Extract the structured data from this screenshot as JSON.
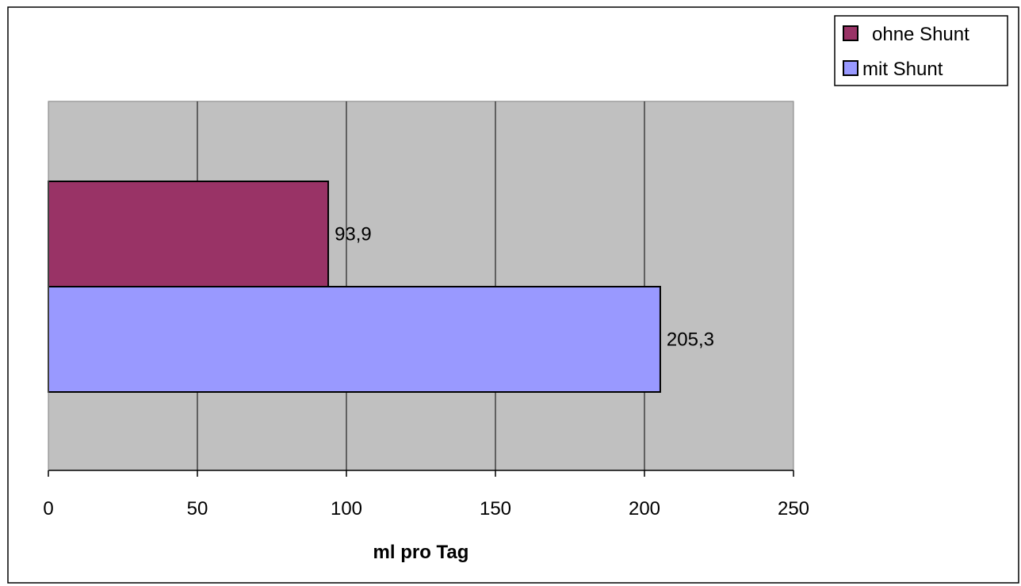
{
  "chart_data": {
    "type": "bar",
    "orientation": "horizontal",
    "title": "",
    "xlabel": "ml pro Tag",
    "ylabel": "",
    "xlim": [
      0,
      250
    ],
    "x_ticks": [
      0,
      50,
      100,
      150,
      200,
      250
    ],
    "categories": [
      ""
    ],
    "series": [
      {
        "name": "ohne Shunt",
        "values": [
          93.9
        ],
        "labels": [
          "93,9"
        ],
        "color": "#993366"
      },
      {
        "name": "mit Shunt",
        "values": [
          205.3
        ],
        "labels": [
          "205,3"
        ],
        "color": "#9999ff"
      }
    ],
    "grid": "vertical",
    "plot_background": "#c0c0c0",
    "legend_position": "top-right"
  }
}
